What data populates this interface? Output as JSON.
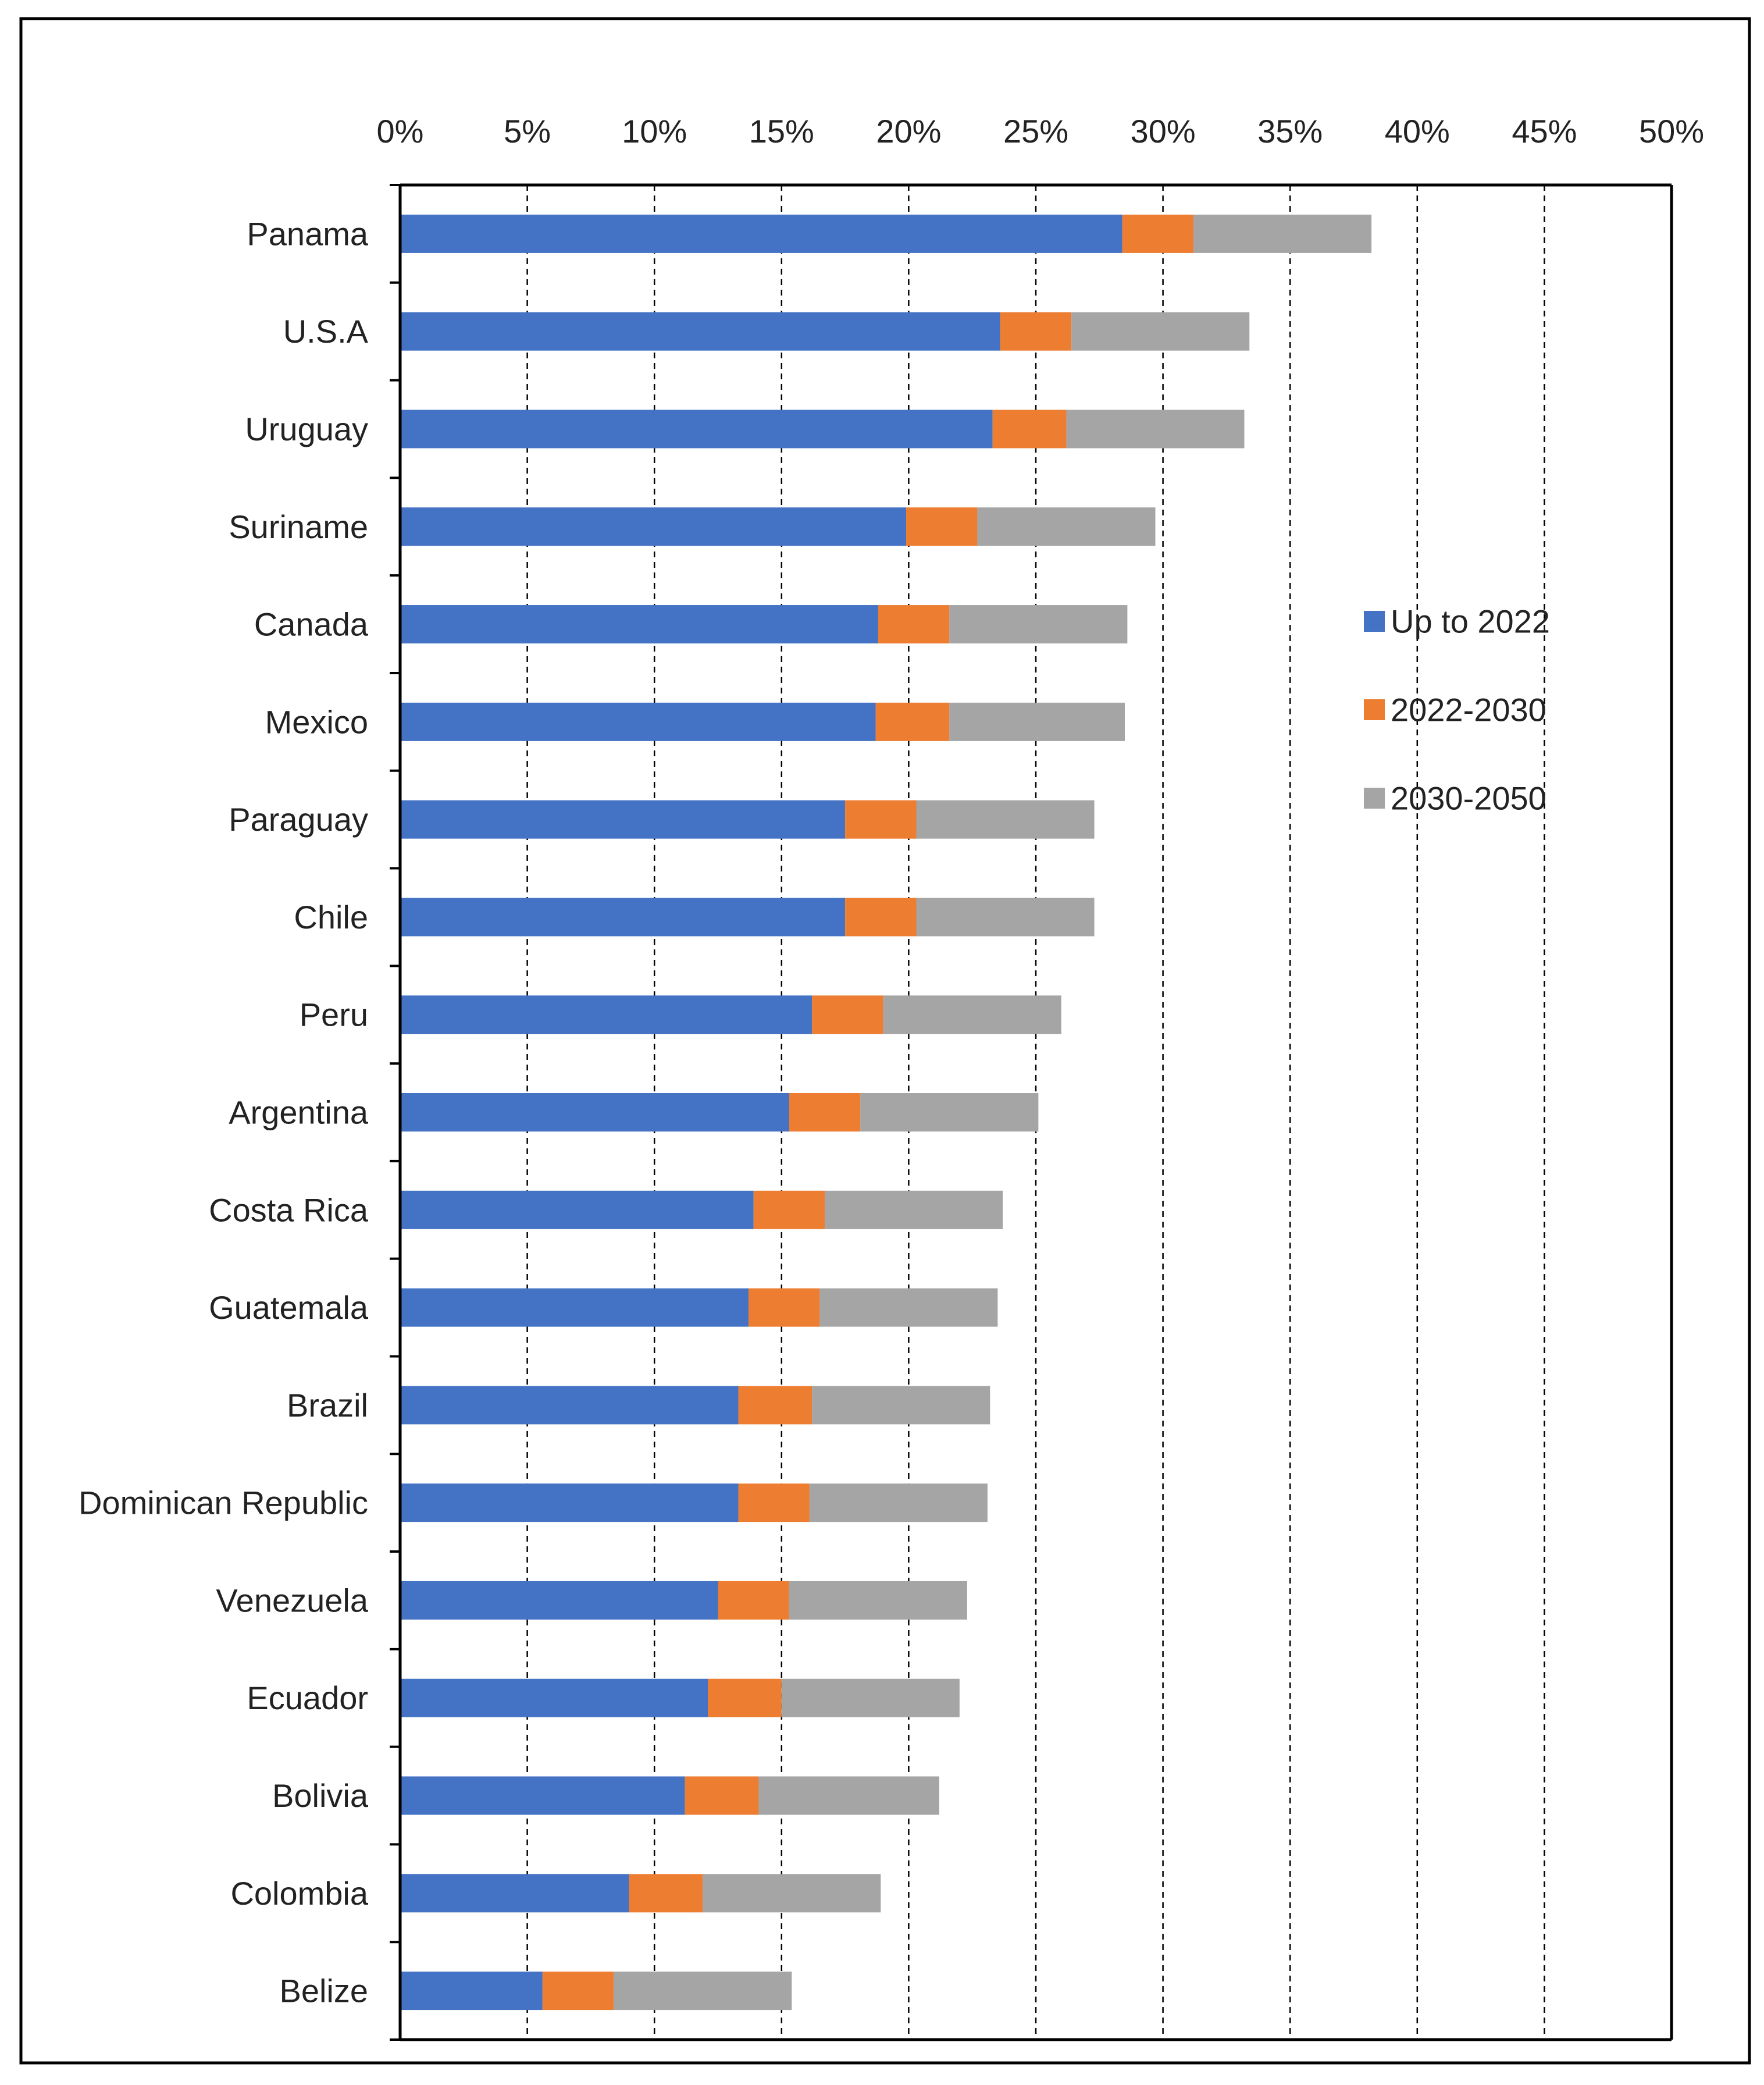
{
  "chart_data": {
    "type": "bar",
    "orientation": "horizontal",
    "stacked": true,
    "title": "",
    "xlabel": "",
    "ylabel": "",
    "xlim": [
      0,
      50
    ],
    "x_ticks": [
      0,
      5,
      10,
      15,
      20,
      25,
      30,
      35,
      40,
      45,
      50
    ],
    "x_tick_labels": [
      "0%",
      "5%",
      "10%",
      "15%",
      "20%",
      "25%",
      "30%",
      "35%",
      "40%",
      "45%",
      "50%"
    ],
    "x_axis_position": "top",
    "grid": "vertical dashed",
    "legend_position": "right",
    "categories": [
      "Panama",
      "U.S.A",
      "Uruguay",
      "Suriname",
      "Canada",
      "Mexico",
      "Paraguay",
      "Chile",
      "Peru",
      "Argentina",
      "Costa Rica",
      "Guatemala",
      "Brazil",
      "Dominican Republic",
      "Venezuela",
      "Ecuador",
      "Bolivia",
      "Colombia",
      "Belize"
    ],
    "series": [
      {
        "name": "Up to 2022",
        "color": "#4472C4",
        "values": [
          28.4,
          23.6,
          23.3,
          19.9,
          18.8,
          18.7,
          17.5,
          17.5,
          16.2,
          15.3,
          13.9,
          13.7,
          13.3,
          13.3,
          12.5,
          12.1,
          11.2,
          9.0,
          5.6
        ]
      },
      {
        "name": "2022-2030",
        "color": "#ED7D31",
        "values": [
          2.8,
          2.8,
          2.9,
          2.8,
          2.8,
          2.9,
          2.8,
          2.8,
          2.8,
          2.8,
          2.8,
          2.8,
          2.9,
          2.8,
          2.8,
          2.9,
          2.9,
          2.9,
          2.8
        ]
      },
      {
        "name": "2030-2050",
        "color": "#A5A5A5",
        "values": [
          7.0,
          7.0,
          7.0,
          7.0,
          7.0,
          6.9,
          7.0,
          7.0,
          7.0,
          7.0,
          7.0,
          7.0,
          7.0,
          7.0,
          7.0,
          7.0,
          7.1,
          7.0,
          7.0
        ]
      }
    ]
  }
}
